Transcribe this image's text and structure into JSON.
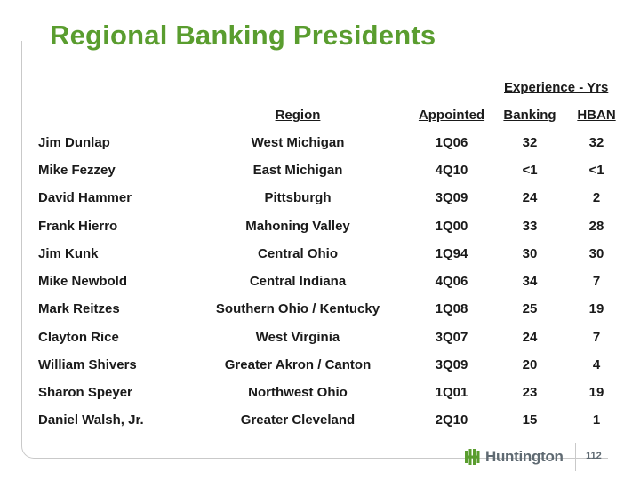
{
  "title": "Regional Banking Presidents",
  "columns": {
    "experience_group": "Experience - Yrs",
    "region": "Region",
    "appointed": "Appointed",
    "banking": "Banking",
    "hban": "HBAN"
  },
  "rows": [
    {
      "name": "Jim Dunlap",
      "region": "West Michigan",
      "appointed": "1Q06",
      "banking": "32",
      "hban": "32"
    },
    {
      "name": "Mike Fezzey",
      "region": "East Michigan",
      "appointed": "4Q10",
      "banking": "<1",
      "hban": "<1"
    },
    {
      "name": "David Hammer",
      "region": "Pittsburgh",
      "appointed": "3Q09",
      "banking": "24",
      "hban": "2"
    },
    {
      "name": "Frank Hierro",
      "region": "Mahoning Valley",
      "appointed": "1Q00",
      "banking": "33",
      "hban": "28"
    },
    {
      "name": "Jim Kunk",
      "region": "Central Ohio",
      "appointed": "1Q94",
      "banking": "30",
      "hban": "30"
    },
    {
      "name": "Mike Newbold",
      "region": "Central Indiana",
      "appointed": "4Q06",
      "banking": "34",
      "hban": "7"
    },
    {
      "name": "Mark Reitzes",
      "region": "Southern Ohio / Kentucky",
      "appointed": "1Q08",
      "banking": "25",
      "hban": "19"
    },
    {
      "name": "Clayton Rice",
      "region": "West Virginia",
      "appointed": "3Q07",
      "banking": "24",
      "hban": "7"
    },
    {
      "name": "William Shivers",
      "region": "Greater Akron / Canton",
      "appointed": "3Q09",
      "banking": "20",
      "hban": "4"
    },
    {
      "name": "Sharon Speyer",
      "region": "Northwest Ohio",
      "appointed": "1Q01",
      "banking": "23",
      "hban": "19"
    },
    {
      "name": "Daniel Walsh, Jr.",
      "region": "Greater Cleveland",
      "appointed": "2Q10",
      "banking": "15",
      "hban": "1"
    }
  ],
  "footer": {
    "logo_text": "Huntington",
    "logo_icon": "huntington-logo-icon",
    "page_number": "112"
  },
  "colors": {
    "title": "#5a9d2f",
    "logo_green": "#5a9d2f",
    "logo_gray": "#5f6a72"
  }
}
